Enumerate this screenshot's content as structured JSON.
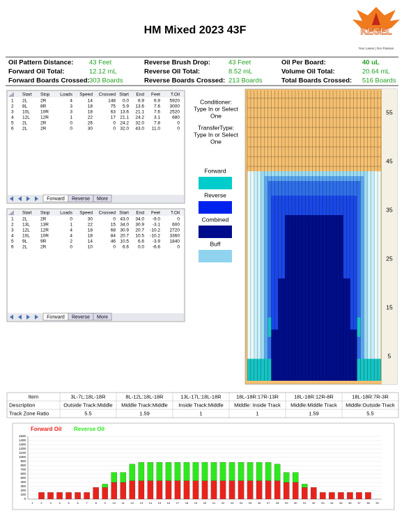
{
  "header": {
    "title": "HM Mixed 2023 43F",
    "logo": "KEGEL",
    "tagline": "Your Lanes | Our Passion"
  },
  "summary": [
    {
      "label": "Oil Pattern Distance:",
      "value": "43 Feet"
    },
    {
      "label": "Reverse Brush Drop:",
      "value": "43 Feet"
    },
    {
      "label": "Oil Per Board:",
      "value": "40 uL"
    },
    {
      "label": "Forward Oil Total:",
      "value": "12.12 mL"
    },
    {
      "label": "Reverse Oil Total:",
      "value": "8.52 mL"
    },
    {
      "label": "Volume Oil Total:",
      "value": "20.64 mL"
    },
    {
      "label": "Forward Boards Crossed:",
      "value": "303 Boards"
    },
    {
      "label": "Reverse Boards Crossed:",
      "value": "213 Boards"
    },
    {
      "label": "Total Boards Crossed:",
      "value": "516 Boards"
    }
  ],
  "forward_table": {
    "columns": [
      "Start",
      "Stop",
      "Loads",
      "Speed",
      "Crossed",
      "Start",
      "End",
      "Feet",
      "T.Oil"
    ],
    "rows": [
      [
        "1",
        "2L",
        "2R",
        "4",
        "14",
        "148",
        "0.0",
        "6.9",
        "6.9",
        "5920"
      ],
      [
        "2",
        "8L",
        "8R",
        "3",
        "18",
        "75",
        "5.9",
        "13.6",
        "7.6",
        "3000"
      ],
      [
        "3",
        "10L",
        "10R",
        "3",
        "18",
        "63",
        "13.6",
        "21.1",
        "7.6",
        "2520"
      ],
      [
        "4",
        "12L",
        "12R",
        "1",
        "22",
        "17",
        "21.1",
        "24.2",
        "3.1",
        "680"
      ],
      [
        "5",
        "2L",
        "2R",
        "0",
        "26",
        "0",
        "24.2",
        "32.0",
        "7.8",
        "0"
      ],
      [
        "6",
        "2L",
        "2R",
        "0",
        "30",
        "0",
        "32.0",
        "43.0",
        "11.0",
        "0"
      ]
    ],
    "tabs": [
      "Forward",
      "Reverse",
      "More"
    ]
  },
  "reverse_table": {
    "columns": [
      "Start",
      "Stop",
      "Loads",
      "Speed",
      "Crossed",
      "Start",
      "End",
      "Feet",
      "T.Oil"
    ],
    "rows": [
      [
        "1",
        "2L",
        "2R",
        "0",
        "30",
        "0",
        "43.0",
        "34.0",
        "-9.0",
        "0"
      ],
      [
        "2",
        "13L",
        "13R",
        "1",
        "22",
        "15",
        "34.0",
        "30.9",
        "-3.1",
        "600"
      ],
      [
        "3",
        "12L",
        "12R",
        "4",
        "18",
        "68",
        "30.9",
        "20.7",
        "-10.2",
        "2720"
      ],
      [
        "4",
        "10L",
        "10R",
        "4",
        "18",
        "84",
        "20.7",
        "10.5",
        "-10.2",
        "3360"
      ],
      [
        "5",
        "9L",
        "9R",
        "2",
        "14",
        "46",
        "10.5",
        "6.6",
        "-3.9",
        "1840"
      ],
      [
        "6",
        "2L",
        "2R",
        "0",
        "10",
        "0",
        "6.6",
        "0.0",
        "-6.6",
        "0"
      ]
    ],
    "tabs": [
      "Forward",
      "Reverse",
      "More"
    ]
  },
  "conditioner": [
    "Conditioner:",
    "Type In or Select",
    "One"
  ],
  "transfer_type": [
    "TransferType:",
    "Type In or Select",
    "One"
  ],
  "legend": [
    {
      "label": "Forward",
      "color": "#00cccc"
    },
    {
      "label": "Reverse",
      "color": "#0022ee"
    },
    {
      "label": "Combined",
      "color": "#000c8c"
    },
    {
      "label": "Buff",
      "color": "#8fd3ee"
    }
  ],
  "pattern_scale": [
    55,
    45,
    35,
    25,
    15,
    5
  ],
  "track_zone": {
    "rows": [
      [
        "Item",
        "3L-7L:18L-18R",
        "8L-12L:18L-18R",
        "13L-17L:18L-18R",
        "18L-18R:17R-13R",
        "18L-18R:12R-8R",
        "18L-18R:7R-3R"
      ],
      [
        "Description",
        "Outside Track:Middle",
        "Middle Track:Middle",
        "Inside Track:Middle",
        "Middle: Inside Track",
        "Middle:Middle Track",
        "Middle:Outside Track"
      ],
      [
        "Track Zone Ratio",
        "5.5",
        "1.59",
        "1",
        "1",
        "1.59",
        "5.5"
      ]
    ]
  },
  "chart_data": {
    "type": "stacked_bar",
    "categories": [
      "1",
      "2",
      "3",
      "4",
      "5",
      "6",
      "7",
      "8",
      "9",
      "10",
      "11",
      "12",
      "13",
      "14",
      "15",
      "16",
      "17",
      "18",
      "19",
      "20",
      "21",
      "22",
      "23",
      "24",
      "25",
      "26",
      "27",
      "28",
      "29",
      "30",
      "31",
      "32",
      "33",
      "34",
      "35",
      "36",
      "37",
      "38",
      "39"
    ],
    "series": [
      {
        "name": "Forward Oil",
        "color": "#e8231c",
        "values": [
          0,
          160,
          160,
          160,
          160,
          160,
          160,
          280,
          280,
          400,
          400,
          440,
          440,
          440,
          440,
          440,
          440,
          440,
          440,
          440,
          440,
          440,
          440,
          440,
          440,
          440,
          440,
          440,
          400,
          400,
          280,
          280,
          160,
          160,
          160,
          160,
          160,
          160,
          0
        ]
      },
      {
        "name": "Reverse Oil",
        "color": "#2ee81c",
        "values": [
          0,
          0,
          0,
          0,
          0,
          0,
          0,
          0,
          80,
          240,
          240,
          400,
          440,
          440,
          440,
          440,
          440,
          440,
          440,
          440,
          440,
          440,
          440,
          440,
          440,
          440,
          440,
          400,
          240,
          240,
          80,
          0,
          0,
          0,
          0,
          0,
          0,
          0,
          0
        ]
      }
    ],
    "ylim": [
      0,
      1500
    ],
    "yticks": [
      0,
      100,
      200,
      300,
      400,
      500,
      600,
      700,
      800,
      900,
      1000,
      1100,
      1200,
      1300,
      1400,
      1500
    ],
    "grid": true
  }
}
